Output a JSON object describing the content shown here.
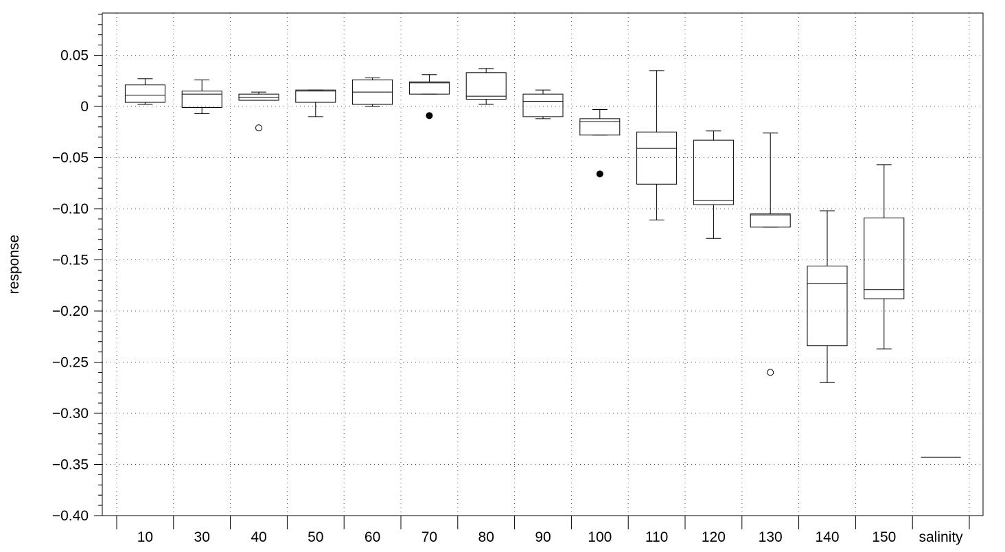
{
  "chart_data": {
    "type": "boxplot",
    "title": "",
    "xlabel": "",
    "ylabel": "response",
    "ylim": [
      -0.4,
      0.09
    ],
    "yticks": [
      0.05,
      0,
      -0.05,
      -0.1,
      -0.15,
      -0.2,
      -0.25,
      -0.3,
      -0.35,
      -0.4
    ],
    "ytick_labels": [
      "0.05",
      "0",
      "−0.05",
      "−0.10",
      "−0.15",
      "−0.20",
      "−0.25",
      "−0.30",
      "−0.35",
      "−0.40"
    ],
    "grid": true,
    "categories": [
      "10",
      "30",
      "40",
      "50",
      "60",
      "70",
      "80",
      "90",
      "100",
      "110",
      "120",
      "130",
      "140",
      "150",
      "salinity"
    ],
    "boxes": [
      {
        "category": "10",
        "whisker_low": 0.002,
        "q1": 0.004,
        "median": 0.011,
        "q3": 0.021,
        "whisker_high": 0.027,
        "outliers": []
      },
      {
        "category": "30",
        "whisker_low": -0.007,
        "q1": -0.001,
        "median": 0.012,
        "q3": 0.015,
        "whisker_high": 0.026,
        "outliers": []
      },
      {
        "category": "40",
        "whisker_low": 0.006,
        "q1": 0.006,
        "median": 0.009,
        "q3": 0.012,
        "whisker_high": 0.014,
        "outliers": [
          {
            "value": -0.021,
            "filled": false
          }
        ]
      },
      {
        "category": "50",
        "whisker_low": -0.01,
        "q1": 0.004,
        "median": 0.015,
        "q3": 0.016,
        "whisker_high": 0.016,
        "outliers": []
      },
      {
        "category": "60",
        "whisker_low": 0.0,
        "q1": 0.002,
        "median": 0.014,
        "q3": 0.026,
        "whisker_high": 0.028,
        "outliers": []
      },
      {
        "category": "70",
        "whisker_low": 0.012,
        "q1": 0.012,
        "median": 0.023,
        "q3": 0.024,
        "whisker_high": 0.031,
        "outliers": [
          {
            "value": -0.009,
            "filled": true
          }
        ]
      },
      {
        "category": "80",
        "whisker_low": 0.002,
        "q1": 0.007,
        "median": 0.01,
        "q3": 0.033,
        "whisker_high": 0.037,
        "outliers": []
      },
      {
        "category": "90",
        "whisker_low": -0.012,
        "q1": -0.01,
        "median": 0.005,
        "q3": 0.012,
        "whisker_high": 0.016,
        "outliers": []
      },
      {
        "category": "100",
        "whisker_low": -0.028,
        "q1": -0.028,
        "median": -0.015,
        "q3": -0.012,
        "whisker_high": -0.003,
        "outliers": [
          {
            "value": -0.066,
            "filled": true
          }
        ]
      },
      {
        "category": "110",
        "whisker_low": -0.111,
        "q1": -0.076,
        "median": -0.041,
        "q3": -0.025,
        "whisker_high": 0.035,
        "outliers": []
      },
      {
        "category": "120",
        "whisker_low": -0.129,
        "q1": -0.096,
        "median": -0.092,
        "q3": -0.033,
        "whisker_high": -0.024,
        "outliers": []
      },
      {
        "category": "130",
        "whisker_low": -0.118,
        "q1": -0.118,
        "median": -0.106,
        "q3": -0.105,
        "whisker_high": -0.026,
        "outliers": [
          {
            "value": -0.26,
            "filled": false
          }
        ]
      },
      {
        "category": "140",
        "whisker_low": -0.27,
        "q1": -0.234,
        "median": -0.173,
        "q3": -0.156,
        "whisker_high": -0.102,
        "outliers": []
      },
      {
        "category": "150",
        "whisker_low": -0.237,
        "q1": -0.188,
        "median": -0.179,
        "q3": -0.109,
        "whisker_high": -0.057,
        "outliers": []
      },
      {
        "category": "salinity",
        "whisker_low": -0.343,
        "q1": -0.343,
        "median": -0.343,
        "q3": -0.343,
        "whisker_high": -0.343,
        "outliers": []
      }
    ],
    "colors": {
      "line": "#000000",
      "grid": "#555555",
      "background": "#ffffff"
    }
  }
}
